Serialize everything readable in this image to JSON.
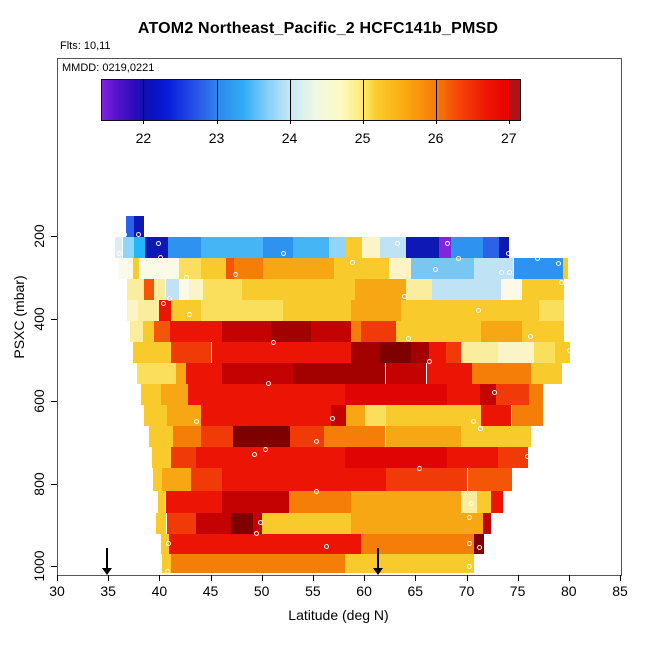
{
  "figure": {
    "title": "ATOM2 Northeast_Pacific_2 HCFC141b_PMSD",
    "flights_label": "Flts: 10,11",
    "mmdd_label": "MMDD: 0219,0221"
  },
  "chart_data": {
    "type": "heatmap",
    "title": "ATOM2 Northeast_Pacific_2 HCFC141b_PMSD",
    "xlabel": "Latitude (deg N)",
    "ylabel": "PSXC (mbar)",
    "x_range": [
      30,
      85
    ],
    "x_ticks": [
      30,
      35,
      40,
      45,
      50,
      55,
      60,
      65,
      70,
      75,
      80,
      85
    ],
    "y_ticks": [
      200,
      400,
      600,
      800,
      1000
    ],
    "y_range_mbar": [
      150,
      1020
    ],
    "y_axis_inverted": true,
    "arrows_lat": [
      34.8,
      61.3
    ],
    "colorbar": {
      "range": [
        21.42,
        27.14
      ],
      "ticks": [
        22,
        23,
        24,
        25,
        26,
        27
      ],
      "gradient": [
        [
          0,
          "#8223E0"
        ],
        [
          3,
          "#5A16CE"
        ],
        [
          8,
          "#2A0CB8"
        ],
        [
          10.1,
          "#1010AE"
        ],
        [
          13,
          "#0A14C4"
        ],
        [
          16.3,
          "#0A20DC"
        ],
        [
          22.4,
          "#2853E8"
        ],
        [
          27.6,
          "#2E87EE"
        ],
        [
          33.7,
          "#2FABF4"
        ],
        [
          39.9,
          "#88D0F8"
        ],
        [
          45.1,
          "#C9E7F6"
        ],
        [
          51.2,
          "#EFF8E2"
        ],
        [
          57.3,
          "#FDFBC2"
        ],
        [
          62.6,
          "#FCE76E"
        ],
        [
          65.5,
          "#FBCD2D"
        ],
        [
          73,
          "#F9A60F"
        ],
        [
          80.1,
          "#F6790A"
        ],
        [
          85.3,
          "#F44706"
        ],
        [
          92.3,
          "#EE1505"
        ],
        [
          97.6,
          "#E60000"
        ],
        [
          97.8,
          "#AD1318"
        ],
        [
          100,
          "#AD1318"
        ]
      ]
    },
    "palette": {
      "purple": "#8226DE",
      "navy": "#0E18B4",
      "blue": "#1C3FD8",
      "mblue": "#2B62E8",
      "azure": "#2E93F0",
      "cyan": "#1FB8F8",
      "sky": "#45B5F5",
      "lcyan": "#8ED5F8",
      "lblue": "#79C6F3",
      "pblue": "#C0E2F5",
      "vpblue": "#DCEEF4",
      "white": "#FBFAE8",
      "cream": "#FBF4C6",
      "pyel": "#FAEE9E",
      "yellow": "#FADF5C",
      "gold": "#F8CA2C",
      "amber": "#F6A713",
      "orange": "#F57E08",
      "dorange": "#F25606",
      "ored": "#F03A07",
      "red": "#EC1505",
      "red2": "#E00404",
      "dred": "#C40202",
      "ddred": "#A30000",
      "maroon": "#7E0000"
    },
    "rows": [
      {
        "p0": 149,
        "p1": 200,
        "seg": [
          [
            36.6,
            37.4,
            "mblue"
          ],
          [
            37.4,
            38.4,
            "navy"
          ]
        ]
      },
      {
        "p0": 200,
        "p1": 251,
        "seg": [
          [
            35.6,
            36.3,
            "vpblue"
          ],
          [
            36.3,
            37.4,
            "lcyan"
          ],
          [
            37.4,
            38.5,
            "cyan"
          ],
          [
            38.5,
            40.7,
            "navy"
          ],
          [
            40.7,
            44,
            "azure"
          ],
          [
            44,
            50,
            "sky"
          ],
          [
            50,
            53,
            "azure"
          ],
          [
            53,
            56.5,
            "sky"
          ],
          [
            56.5,
            58,
            "lcyan"
          ],
          [
            58,
            59.7,
            "gold"
          ],
          [
            59.7,
            61.5,
            "cream"
          ],
          [
            61.5,
            64,
            "pblue"
          ],
          [
            64,
            67.2,
            "navy"
          ],
          [
            67.2,
            68.4,
            "purple"
          ],
          [
            68.4,
            71.5,
            "azure"
          ],
          [
            71.5,
            73.1,
            "mblue"
          ],
          [
            73.1,
            74.1,
            "navy"
          ]
        ]
      },
      {
        "p0": 251,
        "p1": 302,
        "seg": [
          [
            36,
            37.3,
            "white"
          ],
          [
            37.3,
            37.9,
            "gold"
          ],
          [
            37.9,
            41.8,
            "white"
          ],
          [
            41.8,
            44,
            "yellow"
          ],
          [
            44,
            46.4,
            "gold"
          ],
          [
            46.4,
            47.2,
            "dorange"
          ],
          [
            47.2,
            50,
            "orange"
          ],
          [
            50,
            57,
            "amber"
          ],
          [
            57,
            62.3,
            "gold"
          ],
          [
            62.3,
            64.5,
            "cream"
          ],
          [
            64.5,
            70.6,
            "lblue"
          ],
          [
            70.6,
            74.5,
            "pblue"
          ],
          [
            74.5,
            79.3,
            "azure"
          ],
          [
            79.3,
            79.8,
            "gold"
          ]
        ]
      },
      {
        "p0": 302,
        "p1": 352,
        "seg": [
          [
            36.7,
            38.4,
            "pyel"
          ],
          [
            38.4,
            39.4,
            "dorange"
          ],
          [
            39.4,
            40.5,
            "pyel"
          ],
          [
            40.5,
            41.8,
            "pblue"
          ],
          [
            41.8,
            42.8,
            "white"
          ],
          [
            42.8,
            44.2,
            "cream"
          ],
          [
            44.2,
            48,
            "yellow"
          ],
          [
            48,
            59,
            "gold"
          ],
          [
            59,
            64,
            "amber"
          ],
          [
            64,
            66.5,
            "pyel"
          ],
          [
            66.5,
            73.3,
            "pblue"
          ],
          [
            73.3,
            75.3,
            "white"
          ],
          [
            75.3,
            79.4,
            "gold"
          ]
        ]
      },
      {
        "p0": 352,
        "p1": 403,
        "seg": [
          [
            36.7,
            37.8,
            "cream"
          ],
          [
            37.8,
            39.9,
            "pyel"
          ],
          [
            39.9,
            41,
            "red"
          ],
          [
            41,
            44,
            "gold"
          ],
          [
            44,
            52,
            "yellow"
          ],
          [
            52,
            58.6,
            "gold"
          ],
          [
            58.6,
            63.5,
            "amber"
          ],
          [
            63.5,
            77,
            "gold"
          ],
          [
            77,
            79.4,
            "yellow"
          ]
        ]
      },
      {
        "p0": 403,
        "p1": 454,
        "seg": [
          [
            37,
            38.3,
            "pyel"
          ],
          [
            38.3,
            39.4,
            "gold"
          ],
          [
            39.4,
            40.9,
            "dorange"
          ],
          [
            40.9,
            46,
            "red"
          ],
          [
            46,
            50.8,
            "dred"
          ],
          [
            50.8,
            54.7,
            "ddred"
          ],
          [
            54.7,
            58.6,
            "dred"
          ],
          [
            58.6,
            59.6,
            "orange"
          ],
          [
            59.6,
            63,
            "ored"
          ],
          [
            63,
            71.3,
            "gold"
          ],
          [
            71.3,
            75.3,
            "amber"
          ],
          [
            75.3,
            79.4,
            "gold"
          ]
        ]
      },
      {
        "p0": 454,
        "p1": 505,
        "seg": [
          [
            37.3,
            41,
            "gold"
          ],
          [
            41,
            45,
            "ored"
          ],
          [
            45,
            58.6,
            "red"
          ],
          [
            58.6,
            61.5,
            "ddred"
          ],
          [
            61.5,
            64.5,
            "maroon"
          ],
          [
            64.5,
            66.2,
            "ddred"
          ],
          [
            66.2,
            67.9,
            "red"
          ],
          [
            67.9,
            69.4,
            "ored"
          ],
          [
            69.4,
            73,
            "pyel"
          ],
          [
            73,
            76.5,
            "cream"
          ],
          [
            76.5,
            78.5,
            "yellow"
          ],
          [
            78.5,
            80,
            "gold"
          ]
        ]
      },
      {
        "p0": 505,
        "p1": 556,
        "seg": [
          [
            37.7,
            41.5,
            "yellow"
          ],
          [
            41.5,
            42.5,
            "amber"
          ],
          [
            42.5,
            46,
            "red"
          ],
          [
            46,
            53,
            "dred"
          ],
          [
            53,
            62,
            "ddred"
          ],
          [
            62,
            66,
            "dred"
          ],
          [
            66,
            70.4,
            "red"
          ],
          [
            70.4,
            76.2,
            "orange"
          ],
          [
            76.2,
            79.2,
            "gold"
          ]
        ]
      },
      {
        "p0": 556,
        "p1": 607,
        "seg": [
          [
            38.1,
            40.1,
            "gold"
          ],
          [
            40.1,
            42.7,
            "amber"
          ],
          [
            42.7,
            58,
            "red"
          ],
          [
            58,
            68,
            "red2"
          ],
          [
            68,
            71.2,
            "red"
          ],
          [
            71.2,
            72.8,
            "dred"
          ],
          [
            72.8,
            76,
            "ored"
          ],
          [
            76,
            77.4,
            "orange"
          ]
        ]
      },
      {
        "p0": 607,
        "p1": 658,
        "seg": [
          [
            38.4,
            40.6,
            "gold"
          ],
          [
            40.6,
            44,
            "amber"
          ],
          [
            44,
            56.7,
            "red"
          ],
          [
            56.7,
            58.1,
            "dred"
          ],
          [
            58.1,
            60,
            "amber"
          ],
          [
            60,
            62,
            "yellow"
          ],
          [
            62,
            71.3,
            "gold"
          ],
          [
            71.3,
            74.3,
            "red"
          ],
          [
            74.3,
            77.4,
            "orange"
          ]
        ]
      },
      {
        "p0": 658,
        "p1": 709,
        "seg": [
          [
            38.9,
            41.2,
            "gold"
          ],
          [
            41.2,
            44,
            "orange"
          ],
          [
            44,
            47.1,
            "ored"
          ],
          [
            47.1,
            52.7,
            "maroon"
          ],
          [
            52.7,
            56,
            "ored"
          ],
          [
            56,
            62,
            "orange"
          ],
          [
            62,
            69.4,
            "amber"
          ],
          [
            69.4,
            76.2,
            "gold"
          ]
        ]
      },
      {
        "p0": 709,
        "p1": 760,
        "seg": [
          [
            39.2,
            41,
            "gold"
          ],
          [
            41,
            43.5,
            "ored"
          ],
          [
            43.5,
            58,
            "red"
          ],
          [
            58,
            68,
            "red2"
          ],
          [
            68,
            73,
            "red"
          ],
          [
            73,
            75.9,
            "ored"
          ]
        ]
      },
      {
        "p0": 760,
        "p1": 816,
        "seg": [
          [
            39.3,
            40.2,
            "gold"
          ],
          [
            40.2,
            43,
            "amber"
          ],
          [
            43,
            46,
            "ored"
          ],
          [
            46,
            62,
            "red"
          ],
          [
            62,
            70,
            "ored"
          ],
          [
            70,
            74.3,
            "dorange"
          ]
        ]
      },
      {
        "p0": 816,
        "p1": 869,
        "seg": [
          [
            39.8,
            40.5,
            "gold"
          ],
          [
            40.5,
            46,
            "red"
          ],
          [
            46,
            52.6,
            "dred"
          ],
          [
            52.6,
            58.6,
            "orange"
          ],
          [
            58.6,
            69.4,
            "amber"
          ],
          [
            69.4,
            70.9,
            "pyel"
          ],
          [
            70.9,
            72.3,
            "gold"
          ],
          [
            72.3,
            73.5,
            "red"
          ]
        ]
      },
      {
        "p0": 869,
        "p1": 920,
        "seg": [
          [
            39.6,
            40.6,
            "gold"
          ],
          [
            40.6,
            43.5,
            "ored"
          ],
          [
            43.5,
            46.9,
            "dred"
          ],
          [
            46.9,
            49,
            "maroon"
          ],
          [
            49,
            49.9,
            "dred"
          ],
          [
            49.9,
            58.6,
            "gold"
          ],
          [
            58.6,
            71.5,
            "amber"
          ],
          [
            71.5,
            72.3,
            "dred"
          ]
        ]
      },
      {
        "p0": 920,
        "p1": 968,
        "seg": [
          [
            40.1,
            40.8,
            "gold"
          ],
          [
            40.8,
            59.6,
            "red"
          ],
          [
            59.6,
            70.6,
            "orange"
          ],
          [
            70.6,
            71.6,
            "maroon"
          ]
        ]
      },
      {
        "p0": 968,
        "p1": 1014,
        "seg": [
          [
            40.2,
            41,
            "gold"
          ],
          [
            41,
            58,
            "orange"
          ],
          [
            58,
            70.6,
            "gold"
          ]
        ]
      }
    ],
    "points": [
      [
        36.5,
        195
      ],
      [
        37.9,
        195
      ],
      [
        39.8,
        215
      ],
      [
        36.0,
        241
      ],
      [
        40.0,
        250
      ],
      [
        52.0,
        241
      ],
      [
        58.8,
        261
      ],
      [
        63.2,
        215
      ],
      [
        68.0,
        215
      ],
      [
        69.1,
        253
      ],
      [
        74.0,
        239
      ],
      [
        73.3,
        285
      ],
      [
        74.1,
        285
      ],
      [
        76.8,
        253
      ],
      [
        78.9,
        263
      ],
      [
        79.2,
        309
      ],
      [
        66.9,
        278
      ],
      [
        47.3,
        290
      ],
      [
        42.5,
        299
      ],
      [
        63.8,
        345
      ],
      [
        71.1,
        377
      ],
      [
        40.9,
        350
      ],
      [
        40.3,
        362
      ],
      [
        42.8,
        387
      ],
      [
        51.0,
        455
      ],
      [
        64.2,
        447
      ],
      [
        76.2,
        442
      ],
      [
        80.0,
        476
      ],
      [
        66.3,
        501
      ],
      [
        50.6,
        554
      ],
      [
        72.6,
        578
      ],
      [
        43.5,
        646
      ],
      [
        56.8,
        641
      ],
      [
        70.6,
        646
      ],
      [
        71.3,
        663
      ],
      [
        55.2,
        695
      ],
      [
        50.3,
        714
      ],
      [
        49.2,
        726
      ],
      [
        75.9,
        731
      ],
      [
        65.3,
        760
      ],
      [
        55.2,
        816
      ],
      [
        70.4,
        847
      ],
      [
        49.8,
        893
      ],
      [
        49.4,
        918
      ],
      [
        70.2,
        879
      ],
      [
        40.8,
        944
      ],
      [
        56.2,
        949
      ],
      [
        70.2,
        944
      ],
      [
        71.2,
        952
      ],
      [
        40.7,
        1010
      ],
      [
        70.2,
        998
      ]
    ]
  }
}
